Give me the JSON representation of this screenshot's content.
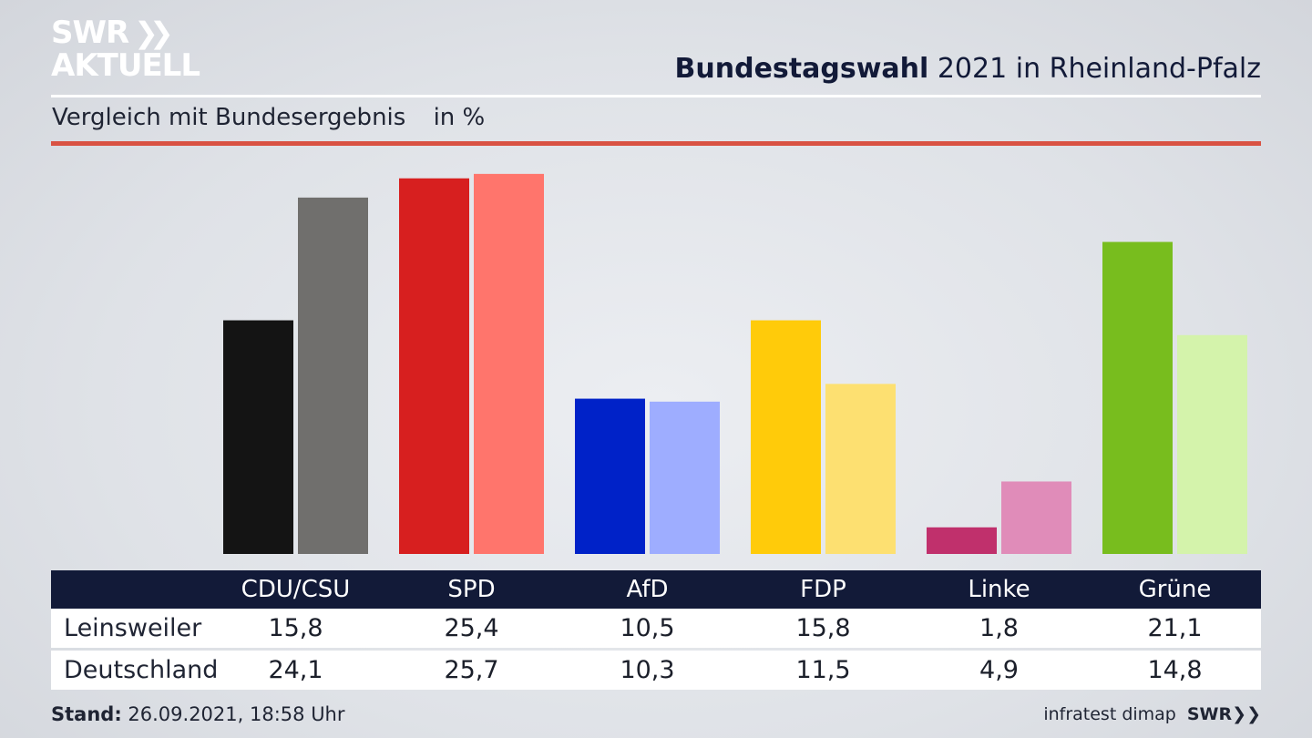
{
  "brand": {
    "line1": "SWR",
    "line1_icon": "double-chevron-icon",
    "line2": "AKTUELL"
  },
  "header": {
    "title_bold": "Bundestagswahl",
    "title_rest": "2021 in Rheinland-Pfalz"
  },
  "subtitle": {
    "text": "Vergleich mit Bundesergebnis",
    "unit": "in %"
  },
  "table": {
    "rows": [
      {
        "label": "Leinsweiler"
      },
      {
        "label": "Deutschland"
      }
    ]
  },
  "footer": {
    "stand_label": "Stand:",
    "stand_value": "26.09.2021, 18:58 Uhr",
    "source": "infratest dimap",
    "logo": "SWR",
    "logo_icon": "double-chevron-icon"
  },
  "colors": {
    "header_bar": "#121a38",
    "accent_rule": "#d95243"
  },
  "chart_data": {
    "type": "bar",
    "categories": [
      "CDU/CSU",
      "SPD",
      "AfD",
      "FDP",
      "Linke",
      "Grüne"
    ],
    "series": [
      {
        "name": "Leinsweiler",
        "values": [
          15.8,
          25.4,
          10.5,
          15.8,
          1.8,
          21.1
        ]
      },
      {
        "name": "Deutschland",
        "values": [
          24.1,
          25.7,
          10.3,
          11.5,
          4.9,
          14.8
        ]
      }
    ],
    "value_labels": [
      [
        "15,8",
        "25,4",
        "10,5",
        "15,8",
        "1,8",
        "21,1"
      ],
      [
        "24,1",
        "25,7",
        "10,3",
        "11,5",
        "4,9",
        "14,8"
      ]
    ],
    "colors": {
      "Leinsweiler": [
        "#141414",
        "#d71f1f",
        "#0022c8",
        "#ffcb0a",
        "#c0306c",
        "#78bd1e"
      ],
      "Deutschland": [
        "#706f6d",
        "#ff756c",
        "#9eadff",
        "#fde071",
        "#e08cb9",
        "#d4f3ab"
      ]
    },
    "ylim": [
      0,
      26
    ],
    "grid": false
  }
}
